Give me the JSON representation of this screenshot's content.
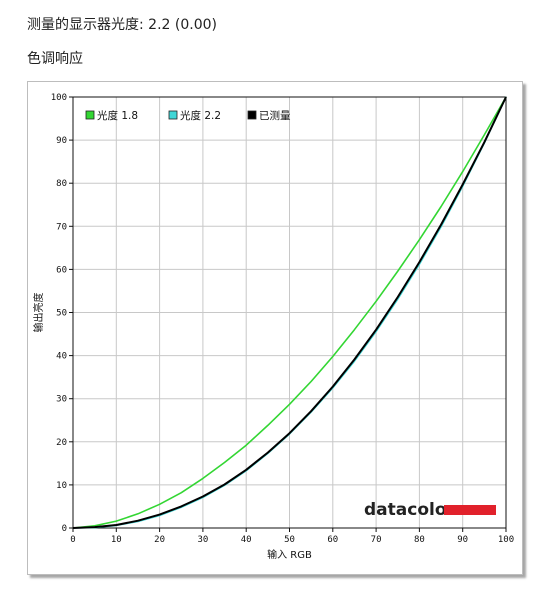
{
  "page": {
    "heading": "测量的显示器光度:  2.2 (0.00)",
    "subheading": "色调响应"
  },
  "brand": {
    "text": "datacolor",
    "bar_color": "#e1212b"
  },
  "chart_data": {
    "type": "line",
    "title": "",
    "xlabel": "输入 RGB",
    "ylabel": "输出亮度",
    "xlim": [
      0,
      100
    ],
    "ylim": [
      0,
      100
    ],
    "xticks": [
      0,
      10,
      20,
      30,
      40,
      50,
      60,
      70,
      80,
      90,
      100
    ],
    "yticks": [
      0,
      10,
      20,
      30,
      40,
      50,
      60,
      70,
      80,
      90,
      100
    ],
    "grid": true,
    "legend_position": "top-left",
    "x": [
      0,
      5,
      10,
      15,
      20,
      25,
      30,
      35,
      40,
      45,
      50,
      55,
      60,
      65,
      70,
      75,
      80,
      85,
      90,
      95,
      100
    ],
    "series": [
      {
        "name": "光度 1.8",
        "color": "#33d633",
        "values": [
          0,
          0.5,
          1.6,
          3.3,
          5.5,
          8.2,
          11.5,
          15.2,
          19.2,
          23.8,
          28.7,
          34.0,
          39.8,
          46.0,
          52.6,
          59.6,
          66.9,
          74.6,
          82.7,
          91.2,
          100
        ]
      },
      {
        "name": "光度 2.2",
        "color": "#3fd6d6",
        "values": [
          0,
          0.1,
          0.6,
          1.5,
          2.9,
          4.8,
          7.1,
          9.9,
          13.3,
          17.3,
          21.8,
          26.9,
          32.5,
          38.7,
          45.6,
          53.1,
          61.2,
          69.9,
          79.3,
          89.3,
          100
        ]
      },
      {
        "name": "已测量",
        "color": "#000000",
        "values": [
          0,
          0.2,
          0.7,
          1.7,
          3.1,
          5.0,
          7.3,
          10.1,
          13.5,
          17.5,
          22.0,
          27.1,
          32.8,
          39.1,
          46.0,
          53.6,
          61.7,
          70.4,
          79.7,
          89.5,
          100
        ]
      }
    ]
  }
}
